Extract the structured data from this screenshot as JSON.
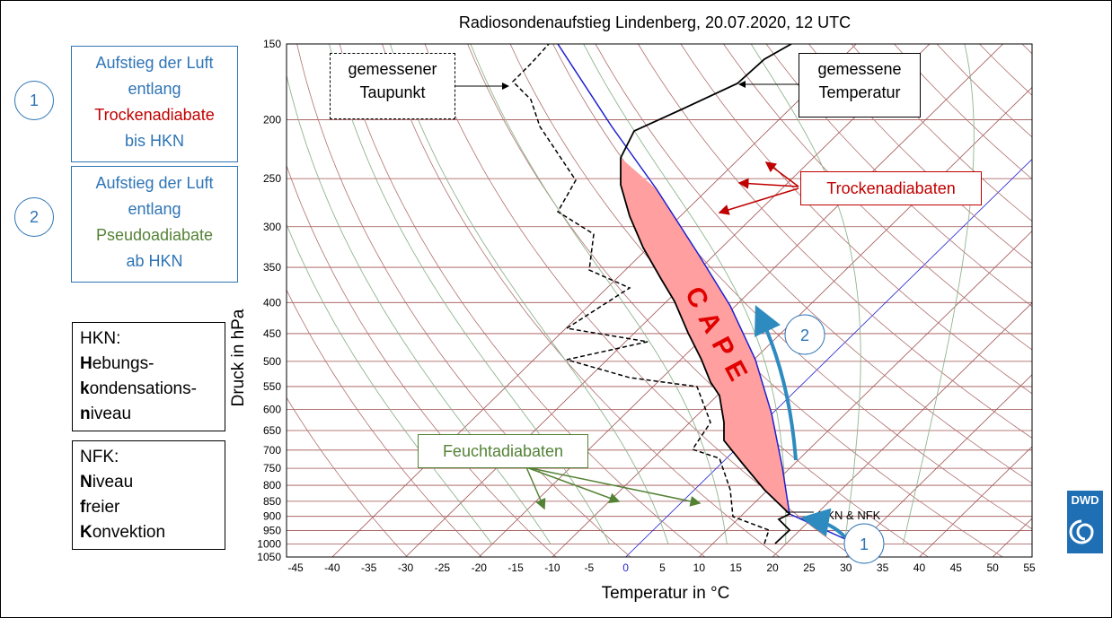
{
  "title": "Radiosondenaufstieg Lindenberg, 20.07.2020, 12 UTC",
  "y_axis": {
    "label": "Druck in hPa",
    "ticks": [
      150,
      200,
      250,
      300,
      350,
      400,
      450,
      500,
      550,
      600,
      650,
      700,
      750,
      800,
      850,
      900,
      950,
      1000,
      1050
    ]
  },
  "x_axis": {
    "label": "Temperatur in °C",
    "ticks": [
      -45,
      -40,
      -35,
      -30,
      -25,
      -20,
      -15,
      -10,
      -5,
      0,
      5,
      10,
      15,
      20,
      25,
      30,
      35,
      40,
      45,
      50,
      55
    ]
  },
  "left_boxes": [
    {
      "number": "1",
      "lines": [
        "Aufstieg der Luft",
        "entlang",
        "Trockenadiabate",
        "bis HKN"
      ]
    },
    {
      "number": "2",
      "lines": [
        "Aufstieg der Luft",
        "entlang",
        "Pseudoadiabate",
        "ab HKN"
      ]
    }
  ],
  "glossary": [
    {
      "term": "HKN:",
      "lines": [
        "Hebungs-",
        "kondensations-",
        "niveau"
      ]
    },
    {
      "term": "NFK:",
      "lines": [
        "Niveau",
        "freier",
        "Konvektion"
      ]
    }
  ],
  "annotations": {
    "dewpoint": [
      "gemessener",
      "Taupunkt"
    ],
    "temperature": [
      "gemessene",
      "Temperatur"
    ],
    "dry": "Trockenadiabaten",
    "moist": "Feuchtadiabaten",
    "cape": "CAPE",
    "hkn": "HKN & NFK",
    "step1": "1",
    "step2": "2"
  },
  "logo": "DWD"
}
